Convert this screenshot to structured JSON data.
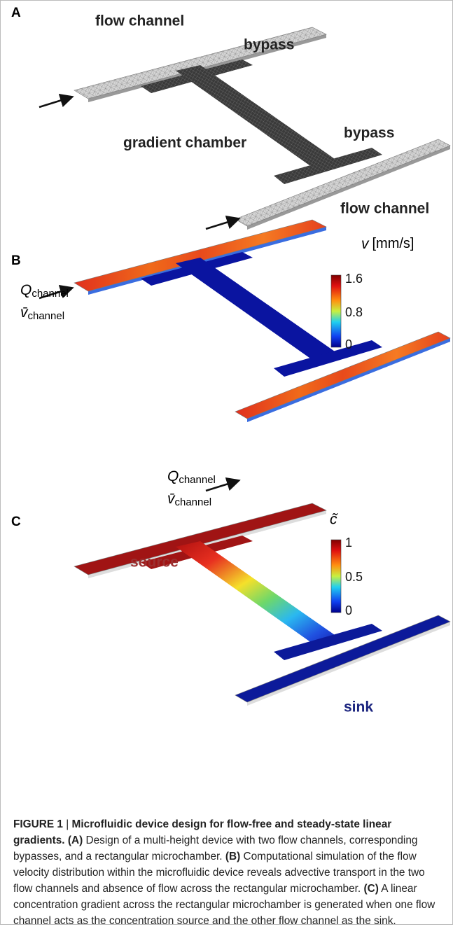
{
  "panel_a": {
    "label": "A",
    "top_channel": "flow channel",
    "top_bypass": "bypass",
    "chamber": "gradient chamber",
    "bottom_bypass": "bypass",
    "bottom_channel": "flow channel"
  },
  "panel_b": {
    "label": "B",
    "colorbar": {
      "symbol": "v",
      "unit": "[mm/s]",
      "ticks": [
        "1.6",
        "0.8",
        "0"
      ]
    },
    "inlet_top": {
      "flow_symbol": "Q",
      "flow_sub": "channel",
      "velocity_symbol": "v̄",
      "velocity_sub": "channel"
    },
    "inlet_bottom": {
      "flow_symbol": "Q",
      "flow_sub": "channel",
      "velocity_symbol": "v̄",
      "velocity_sub": "channel"
    }
  },
  "panel_c": {
    "label": "C",
    "colorbar": {
      "symbol": "c̃",
      "ticks": [
        "1",
        "0.5",
        "0"
      ]
    },
    "source": "source",
    "sink": "sink"
  },
  "caption": {
    "label": "FIGURE 1",
    "separator": "|",
    "title": "Microfluidic device design for flow-free and steady-state linear gradients.",
    "parts": [
      {
        "label": "(A)",
        "text": "Design of a multi-height device with two flow channels, corresponding bypasses, and a rectangular microchamber."
      },
      {
        "label": "(B)",
        "text": "Computational simulation of the flow velocity distribution within the microfluidic device reveals advective transport in the two flow channels and absence of flow across the rectangular microchamber."
      },
      {
        "label": "(C)",
        "text": "A linear concentration gradient across the rectangular microchamber is generated when one flow channel acts as the concentration source and the other flow channel as the sink."
      }
    ]
  }
}
